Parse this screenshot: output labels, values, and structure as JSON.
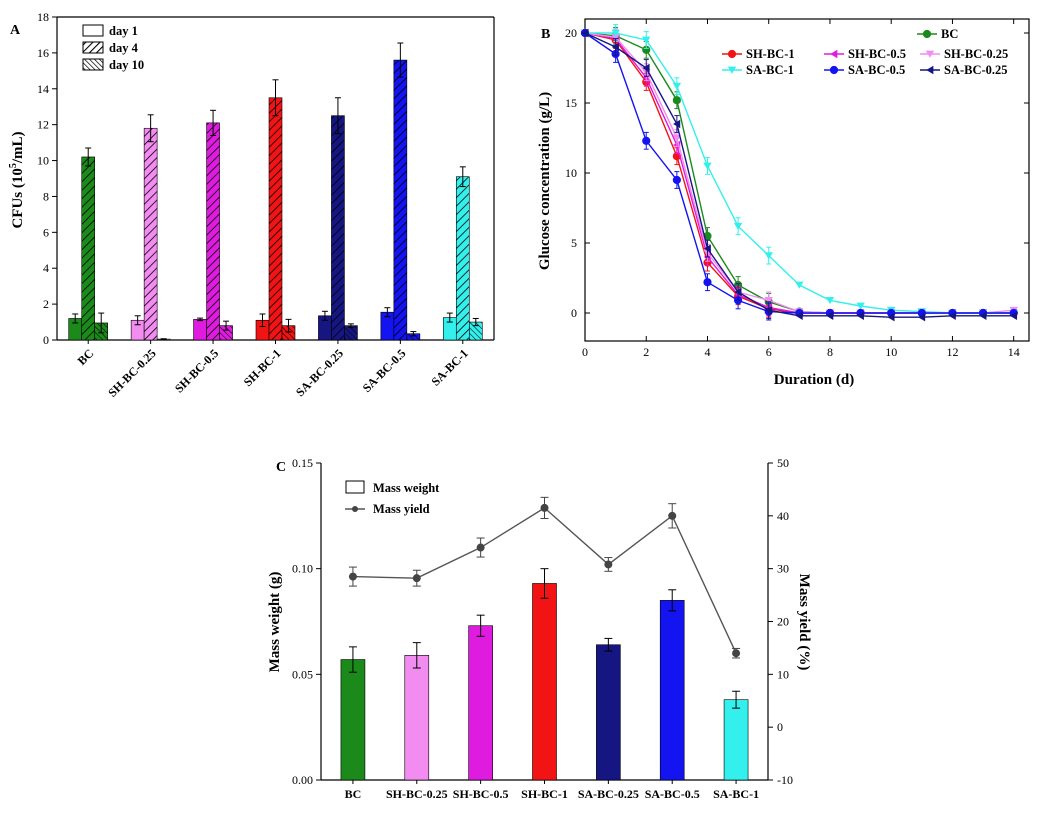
{
  "chart_data": [
    {
      "panel": "A",
      "type": "bar",
      "ylabel": "CFUs (10^5/mL)",
      "ylim": [
        0,
        18
      ],
      "yticks": [
        0,
        2,
        4,
        6,
        8,
        10,
        12,
        14,
        16,
        18
      ],
      "categories": [
        "BC",
        "SH-BC-0.25",
        "SH-BC-0.5",
        "SH-BC-1",
        "SA-BC-0.25",
        "SA-BC-0.5",
        "SA-BC-1"
      ],
      "colors": [
        "#1b8a1b",
        "#f28cf0",
        "#e01be0",
        "#f21414",
        "#161683",
        "#1414f0",
        "#33f0ec"
      ],
      "legend": [
        "day 1",
        "day 4",
        "day 10"
      ],
      "series": [
        {
          "name": "day 1",
          "values": [
            1.2,
            1.1,
            1.15,
            1.1,
            1.35,
            1.55,
            1.25
          ],
          "errors": [
            0.25,
            0.25,
            0.07,
            0.35,
            0.25,
            0.25,
            0.25
          ]
        },
        {
          "name": "day 4",
          "values": [
            10.2,
            11.8,
            12.1,
            13.5,
            12.5,
            15.6,
            9.1
          ],
          "errors": [
            0.5,
            0.75,
            0.7,
            1.0,
            1.0,
            0.95,
            0.55
          ]
        },
        {
          "name": "day 10",
          "values": [
            0.95,
            0.05,
            0.8,
            0.8,
            0.8,
            0.35,
            1.0
          ],
          "errors": [
            0.55,
            0.02,
            0.25,
            0.35,
            0.1,
            0.12,
            0.2
          ]
        }
      ]
    },
    {
      "panel": "B",
      "type": "line",
      "xlabel": "Duration (d)",
      "ylabel": "Glucose concentration (g/L)",
      "xlim": [
        0,
        14.5
      ],
      "ylim": [
        -2,
        21
      ],
      "xticks": [
        0,
        2,
        4,
        6,
        8,
        10,
        12,
        14
      ],
      "yticks": [
        0,
        5,
        10,
        15,
        20
      ],
      "x": [
        0,
        1,
        2,
        3,
        4,
        5,
        6,
        7,
        8,
        9,
        10,
        11,
        12,
        13,
        14
      ],
      "series": [
        {
          "name": "BC",
          "color": "#1b8a1b",
          "marker": "circle",
          "values": [
            20,
            19.8,
            18.8,
            15.2,
            5.5,
            2.0,
            0.8,
            0.1,
            0.0,
            0.0,
            0.0,
            0.0,
            0.0,
            0.0,
            0.0
          ]
        },
        {
          "name": "SH-BC-1",
          "color": "#f21414",
          "marker": "circle",
          "values": [
            20,
            19.5,
            16.5,
            11.2,
            3.6,
            1.2,
            0.3,
            0.0,
            0.0,
            0.0,
            0.0,
            0.0,
            0.0,
            0.0,
            0.0
          ]
        },
        {
          "name": "SH-BC-0.5",
          "color": "#e01be0",
          "marker": "triangle-left",
          "values": [
            20,
            19.6,
            16.8,
            12.0,
            4.0,
            1.3,
            0.4,
            0.0,
            0.0,
            0.0,
            0.0,
            0.0,
            0.0,
            0.0,
            0.0
          ]
        },
        {
          "name": "SH-BC-0.25",
          "color": "#f28cf0",
          "marker": "triangle-down",
          "values": [
            20,
            19.7,
            17.2,
            12.5,
            4.3,
            1.5,
            0.9,
            0.1,
            0.0,
            0.0,
            0.0,
            0.0,
            0.0,
            0.0,
            0.2
          ]
        },
        {
          "name": "SA-BC-1",
          "color": "#33f0ec",
          "marker": "triangle-down",
          "values": [
            20,
            20.0,
            19.5,
            16.2,
            10.5,
            6.2,
            4.1,
            2.0,
            0.9,
            0.5,
            0.2,
            0.1,
            0.0,
            0.0,
            0.0
          ]
        },
        {
          "name": "SA-BC-0.5",
          "color": "#1414f0",
          "marker": "circle",
          "values": [
            20,
            18.5,
            12.3,
            9.5,
            2.2,
            0.9,
            0.1,
            0.0,
            0.0,
            0.0,
            0.0,
            0.0,
            0.0,
            0.0,
            0.0
          ]
        },
        {
          "name": "SA-BC-0.25",
          "color": "#161683",
          "marker": "triangle-left",
          "values": [
            20,
            19.0,
            17.5,
            13.5,
            4.6,
            1.5,
            0.2,
            -0.2,
            -0.2,
            -0.2,
            -0.3,
            -0.3,
            -0.2,
            -0.2,
            -0.2
          ]
        }
      ]
    },
    {
      "panel": "C",
      "type": "bar+line",
      "ylabel": "Mass weight (g)",
      "y2label": "Mass yield (%)",
      "ylim": [
        0,
        0.15
      ],
      "yticks": [
        "0.00",
        "0.05",
        "0.10",
        "0.15"
      ],
      "y2lim": [
        -10,
        50
      ],
      "y2ticks": [
        -10,
        0,
        10,
        20,
        30,
        40,
        50
      ],
      "categories": [
        "BC",
        "SH-BC-0.25",
        "SH-BC-0.5",
        "SH-BC-1",
        "SA-BC-0.25",
        "SA-BC-0.5",
        "SA-BC-1"
      ],
      "colors": [
        "#1b8a1b",
        "#f28cf0",
        "#e01be0",
        "#f21414",
        "#161683",
        "#1414f0",
        "#33f0ec"
      ],
      "legend": [
        "Mass weight",
        "Mass yield"
      ],
      "mass_weight": [
        0.057,
        0.059,
        0.073,
        0.093,
        0.064,
        0.085,
        0.038
      ],
      "mass_weight_err": [
        0.006,
        0.006,
        0.005,
        0.007,
        0.003,
        0.005,
        0.004
      ],
      "mass_yield": [
        28.5,
        28.2,
        34.0,
        41.5,
        30.8,
        40.0,
        14.0
      ],
      "mass_yield_err": [
        1.8,
        1.5,
        1.8,
        2.0,
        1.3,
        2.3,
        0.9
      ]
    }
  ],
  "labels": {
    "panel_a": "A",
    "panel_b": "B",
    "panel_c": "C",
    "a_ylabel_prefix": "CFUs (10",
    "a_ylabel_exp": "5",
    "a_ylabel_suffix": "/mL)"
  }
}
